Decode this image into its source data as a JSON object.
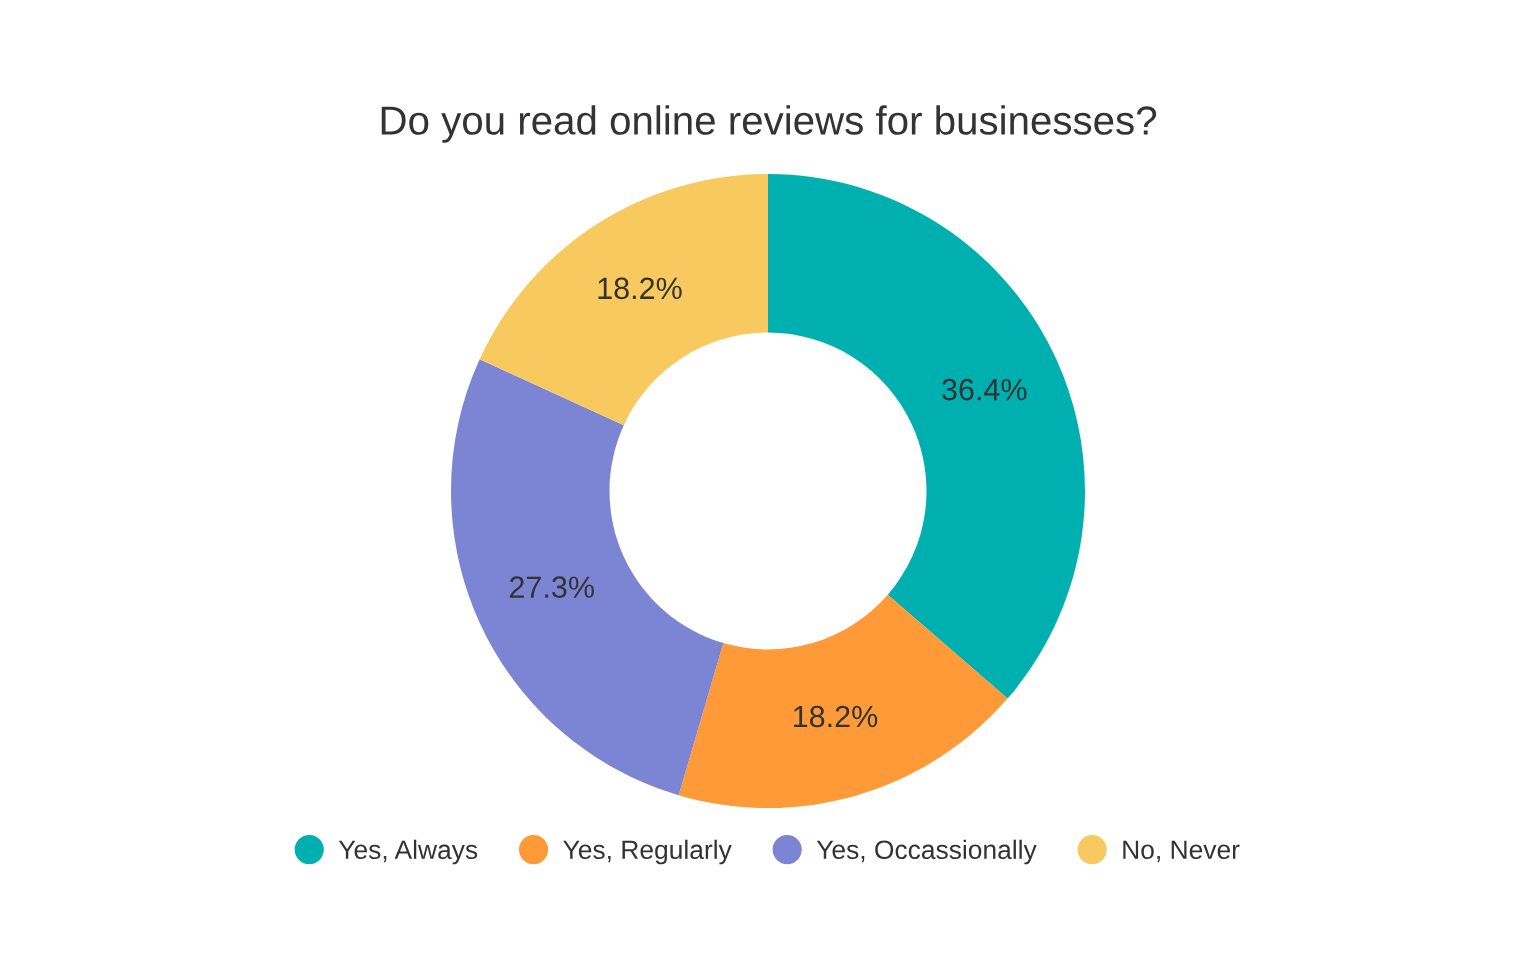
{
  "chart_data": {
    "type": "donut",
    "title": "Do you read online reviews for businesses?",
    "categories": [
      "Yes, Always",
      "Yes, Regularly",
      "Yes, Occassionally",
      "No, Never"
    ],
    "values": [
      36.4,
      18.2,
      27.3,
      18.2
    ],
    "colors": [
      "#00b0b0",
      "#fe9a38",
      "#7c84d4",
      "#f8c95e"
    ],
    "value_labels": [
      "36.4%",
      "18.2%",
      "27.3%",
      "18.2%"
    ],
    "legend": "bottom"
  }
}
